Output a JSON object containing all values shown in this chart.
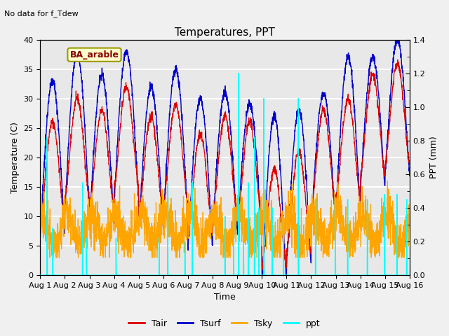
{
  "title": "Temperatures, PPT",
  "subtitle": "No data for f_Tdew",
  "station_label": "BA_arable",
  "xlabel": "Time",
  "ylabel_left": "Temperature (C)",
  "ylabel_right": "PPT (mm)",
  "xlim": [
    0,
    15
  ],
  "ylim_left": [
    0,
    40
  ],
  "ylim_right": [
    0.0,
    1.4
  ],
  "yticks_left": [
    0,
    5,
    10,
    15,
    20,
    25,
    30,
    35,
    40
  ],
  "yticks_right": [
    0.0,
    0.2,
    0.4,
    0.6,
    0.8,
    1.0,
    1.2,
    1.4
  ],
  "xtick_labels": [
    "Aug 1",
    "Aug 2",
    "Aug 3",
    "Aug 4",
    "Aug 5",
    "Aug 6",
    "Aug 7",
    "Aug 8",
    "Aug 9",
    "Aug 10",
    "Aug 11",
    "Aug 12",
    "Aug 13",
    "Aug 14",
    "Aug 15",
    "Aug 16"
  ],
  "xtick_positions": [
    0,
    1,
    2,
    3,
    4,
    5,
    6,
    7,
    8,
    9,
    10,
    11,
    12,
    13,
    14,
    15
  ],
  "color_tair": "#dd0000",
  "color_tsurf": "#0000cc",
  "color_tsky": "#ffa500",
  "color_ppt": "#00ffff",
  "color_station_box_edge": "#999900",
  "color_station_box_face": "#ffffcc",
  "bg_color": "#e8e8e8",
  "grid_color": "#ffffff",
  "fig_facecolor": "#f0f0f0",
  "legend_entries": [
    "Tair",
    "Tsurf",
    "Tsky",
    "ppt"
  ],
  "tair_peaks": [
    26,
    30,
    28,
    32,
    27,
    29,
    24,
    27,
    26,
    18,
    21,
    28,
    30,
    34,
    36
  ],
  "tsurf_peaks": [
    33,
    38,
    34,
    38,
    32,
    35,
    30,
    31,
    29,
    27,
    28,
    31,
    37,
    37,
    40
  ],
  "ppt_spike_times": [
    0.28,
    0.5,
    1.72,
    1.88,
    3.08,
    4.83,
    5.18,
    5.88,
    6.18,
    7.5,
    7.85,
    8.05,
    8.25,
    8.45,
    8.7,
    8.88,
    9.08,
    9.42,
    9.88,
    10.48,
    11.18,
    11.98,
    12.48,
    13.28,
    13.98,
    14.48,
    14.88
  ],
  "ppt_spike_vals": [
    0.82,
    0.28,
    0.55,
    0.22,
    0.22,
    0.22,
    0.55,
    0.2,
    0.55,
    0.35,
    0.38,
    1.2,
    0.38,
    0.55,
    0.82,
    0.4,
    1.05,
    0.4,
    0.35,
    1.05,
    0.45,
    0.45,
    0.45,
    0.45,
    0.48,
    0.48,
    0.45
  ]
}
